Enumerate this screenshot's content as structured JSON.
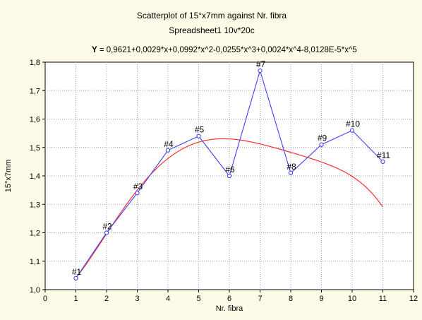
{
  "chart_data": {
    "type": "scatter",
    "title": "Scatterplot of 15°x7mm against Nr. fibra",
    "subtitle": "Spreadsheet1 10v*20c",
    "equation": {
      "prefix": "Y",
      "text": " = 0,9621+0,0029*x+0,0992*x^2-0,0255*x^3+0,0024*x^4-8,0128E-5*x^5",
      "coefficients": [
        0.9621,
        0.0029,
        0.0992,
        -0.0255,
        0.0024,
        -8.0128e-05
      ]
    },
    "xlabel": "Nr. fibra",
    "ylabel": "15°x7mm",
    "xlim": [
      0,
      12
    ],
    "ylim": [
      1.0,
      1.8
    ],
    "x_ticks": [
      0,
      1,
      2,
      3,
      4,
      5,
      6,
      7,
      8,
      9,
      10,
      11,
      12
    ],
    "y_ticks": [
      "1,0",
      "1,1",
      "1,2",
      "1,3",
      "1,4",
      "1,5",
      "1,6",
      "1,7",
      "1,8"
    ],
    "y_tick_values": [
      1.0,
      1.1,
      1.2,
      1.3,
      1.4,
      1.5,
      1.6,
      1.7,
      1.8
    ],
    "grid": true,
    "points": [
      {
        "x": 1,
        "y": 1.04,
        "label": "#1"
      },
      {
        "x": 2,
        "y": 1.2,
        "label": "#2"
      },
      {
        "x": 3,
        "y": 1.34,
        "label": "#3"
      },
      {
        "x": 4,
        "y": 1.49,
        "label": "#4"
      },
      {
        "x": 5,
        "y": 1.54,
        "label": "#5"
      },
      {
        "x": 6,
        "y": 1.4,
        "label": "#6"
      },
      {
        "x": 7,
        "y": 1.77,
        "label": "#7"
      },
      {
        "x": 8,
        "y": 1.41,
        "label": "#8"
      },
      {
        "x": 9,
        "y": 1.51,
        "label": "#9"
      },
      {
        "x": 10,
        "y": 1.56,
        "label": "#10"
      },
      {
        "x": 11,
        "y": 1.45,
        "label": "#11"
      }
    ],
    "colors": {
      "background": "#fdfbe8",
      "plot_background": "#ffffff",
      "data_line": "#4040ff",
      "fit_line": "#ff3030",
      "grid": "#a0a0a0"
    }
  }
}
